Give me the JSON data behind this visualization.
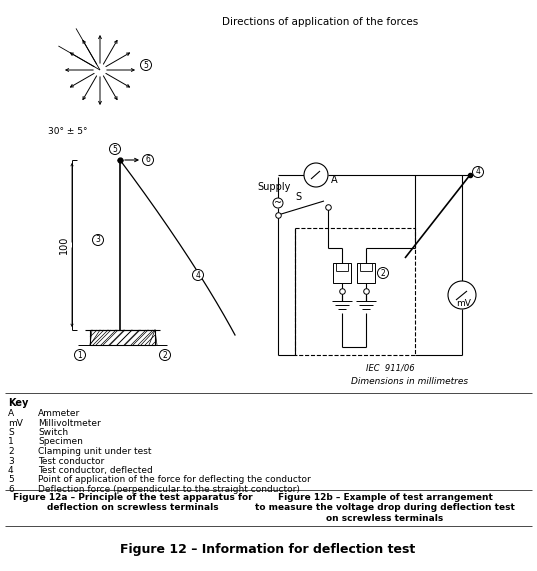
{
  "title": "Figure 12 – Information for deflection test",
  "fig12a_title": "Figure 12a – Principle of the test apparatus for\ndeflection on screwless terminals",
  "fig12b_title": "Figure 12b – Example of test arrangement\nto measure the voltage drop during deflection test\non screwless terminals",
  "directions_label": "Directions of application of the forces",
  "angle_label": "30° ± 5°",
  "dim_label": "Dimensions in millimetres",
  "iec_label": "IEC  911/06",
  "key_title": "Key",
  "key_entries": [
    [
      "A",
      "Ammeter"
    ],
    [
      "mV",
      "Millivoltmeter"
    ],
    [
      "S",
      "Switch"
    ],
    [
      "1",
      "Specimen"
    ],
    [
      "2",
      "Clamping unit under test"
    ],
    [
      "3",
      "Test conductor"
    ],
    [
      "4",
      "Test conductor, deflected"
    ],
    [
      "5",
      "Point of application of the force for deflecting the conductor"
    ],
    [
      "6",
      "Deflection force (perpendicular to the straight conductor)"
    ]
  ],
  "dim_100": "100",
  "bg_color": "#ffffff",
  "line_color": "#000000"
}
